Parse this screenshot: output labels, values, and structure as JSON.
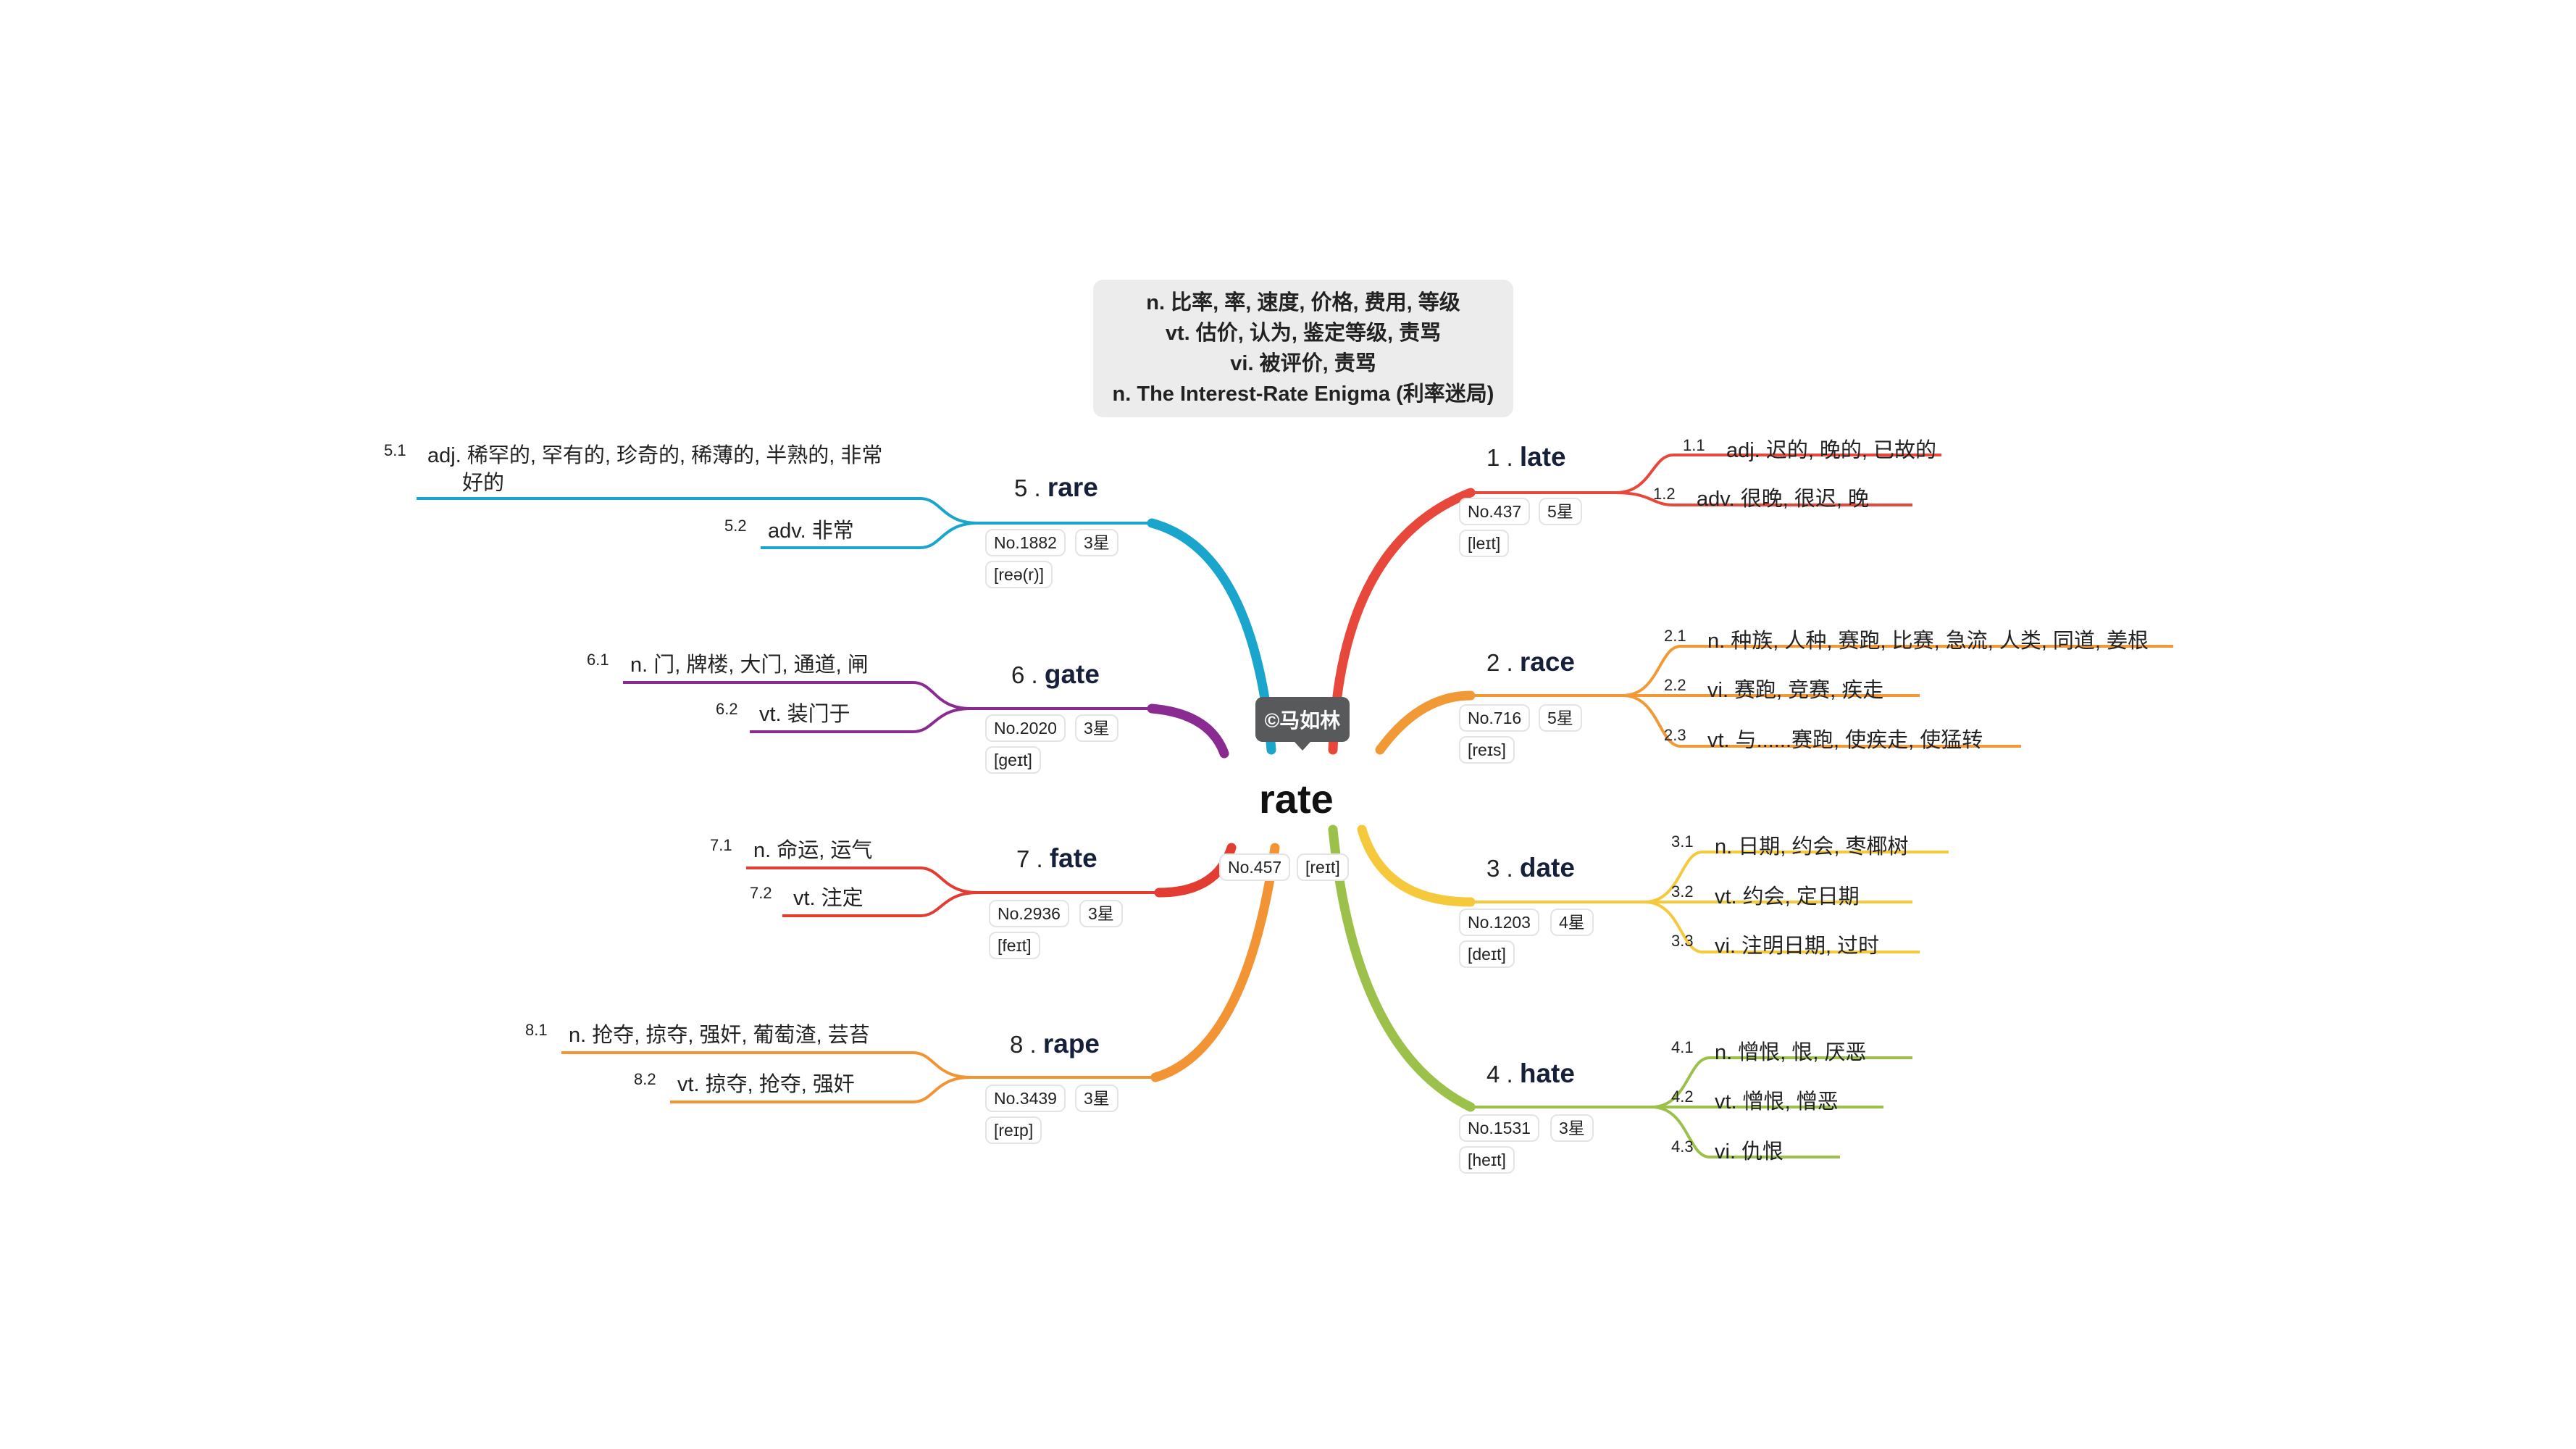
{
  "center": {
    "word": "rate",
    "no": "No.457",
    "phonetic": "[reɪt]"
  },
  "watermark": "©马如林",
  "definitions": [
    "n. 比率, 率, 速度, 价格, 费用, 等级",
    "vt. 估价, 认为, 鉴定等级, 责骂",
    "vi. 被评价, 责骂",
    "n. The Interest-Rate Enigma (利率迷局)"
  ],
  "branches": [
    {
      "num": "1 .",
      "word": "late",
      "no": "No.437",
      "stars": "5星",
      "phonetic": "[leɪt]",
      "color": "#e8473b",
      "leaves": [
        {
          "idx": "1.1",
          "text": "adj. 迟的, 晚的, 已故的"
        },
        {
          "idx": "1.2",
          "text": "adv. 很晚, 很迟, 晚"
        }
      ]
    },
    {
      "num": "2 .",
      "word": "race",
      "no": "No.716",
      "stars": "5星",
      "phonetic": "[reɪs]",
      "color": "#f19a35",
      "leaves": [
        {
          "idx": "2.1",
          "text": "n. 种族, 人种, 赛跑, 比赛, 急流, 人类, 同道, 姜根"
        },
        {
          "idx": "2.2",
          "text": "vi. 赛跑, 竞赛, 疾走"
        },
        {
          "idx": "2.3",
          "text": "vt. 与......赛跑, 使疾走, 使猛转"
        }
      ]
    },
    {
      "num": "3 .",
      "word": "date",
      "no": "No.1203",
      "stars": "4星",
      "phonetic": "[deɪt]",
      "color": "#f6c93c",
      "leaves": [
        {
          "idx": "3.1",
          "text": "n. 日期, 约会, 枣椰树"
        },
        {
          "idx": "3.2",
          "text": "vt. 约会, 定日期"
        },
        {
          "idx": "3.3",
          "text": "vi. 注明日期, 过时"
        }
      ]
    },
    {
      "num": "4 .",
      "word": "hate",
      "no": "No.1531",
      "stars": "3星",
      "phonetic": "[heɪt]",
      "color": "#9cc14a",
      "leaves": [
        {
          "idx": "4.1",
          "text": "n. 憎恨, 恨, 厌恶"
        },
        {
          "idx": "4.2",
          "text": "vt. 憎恨, 憎恶"
        },
        {
          "idx": "4.3",
          "text": "vi. 仇恨"
        }
      ]
    },
    {
      "num": "5 .",
      "word": "rare",
      "no": "No.1882",
      "stars": "3星",
      "phonetic": "[reə(r)]",
      "color": "#1aa5cc",
      "leaves": [
        {
          "idx": "5.1",
          "text": "adj. 稀罕的, 罕有的, 珍奇的, 稀薄的, 半熟的, 非常",
          "text2": "好的"
        },
        {
          "idx": "5.2",
          "text": "adv. 非常"
        }
      ]
    },
    {
      "num": "6 .",
      "word": "gate",
      "no": "No.2020",
      "stars": "3星",
      "phonetic": "[geɪt]",
      "color": "#8a2b92",
      "leaves": [
        {
          "idx": "6.1",
          "text": "n. 门, 牌楼, 大门, 通道, 闸"
        },
        {
          "idx": "6.2",
          "text": "vt. 装门于"
        }
      ]
    },
    {
      "num": "7 .",
      "word": "fate",
      "no": "No.2936",
      "stars": "3星",
      "phonetic": "[feɪt]",
      "color": "#e23c33",
      "leaves": [
        {
          "idx": "7.1",
          "text": "n. 命运, 运气"
        },
        {
          "idx": "7.2",
          "text": "vt. 注定"
        }
      ]
    },
    {
      "num": "8 .",
      "word": "rape",
      "no": "No.3439",
      "stars": "3星",
      "phonetic": "[reɪp]",
      "color": "#f29434",
      "leaves": [
        {
          "idx": "8.1",
          "text": "n. 抢夺, 掠夺, 强奸, 葡萄渣, 芸苔"
        },
        {
          "idx": "8.2",
          "text": "vt. 掠夺, 抢夺, 强奸"
        }
      ]
    }
  ]
}
